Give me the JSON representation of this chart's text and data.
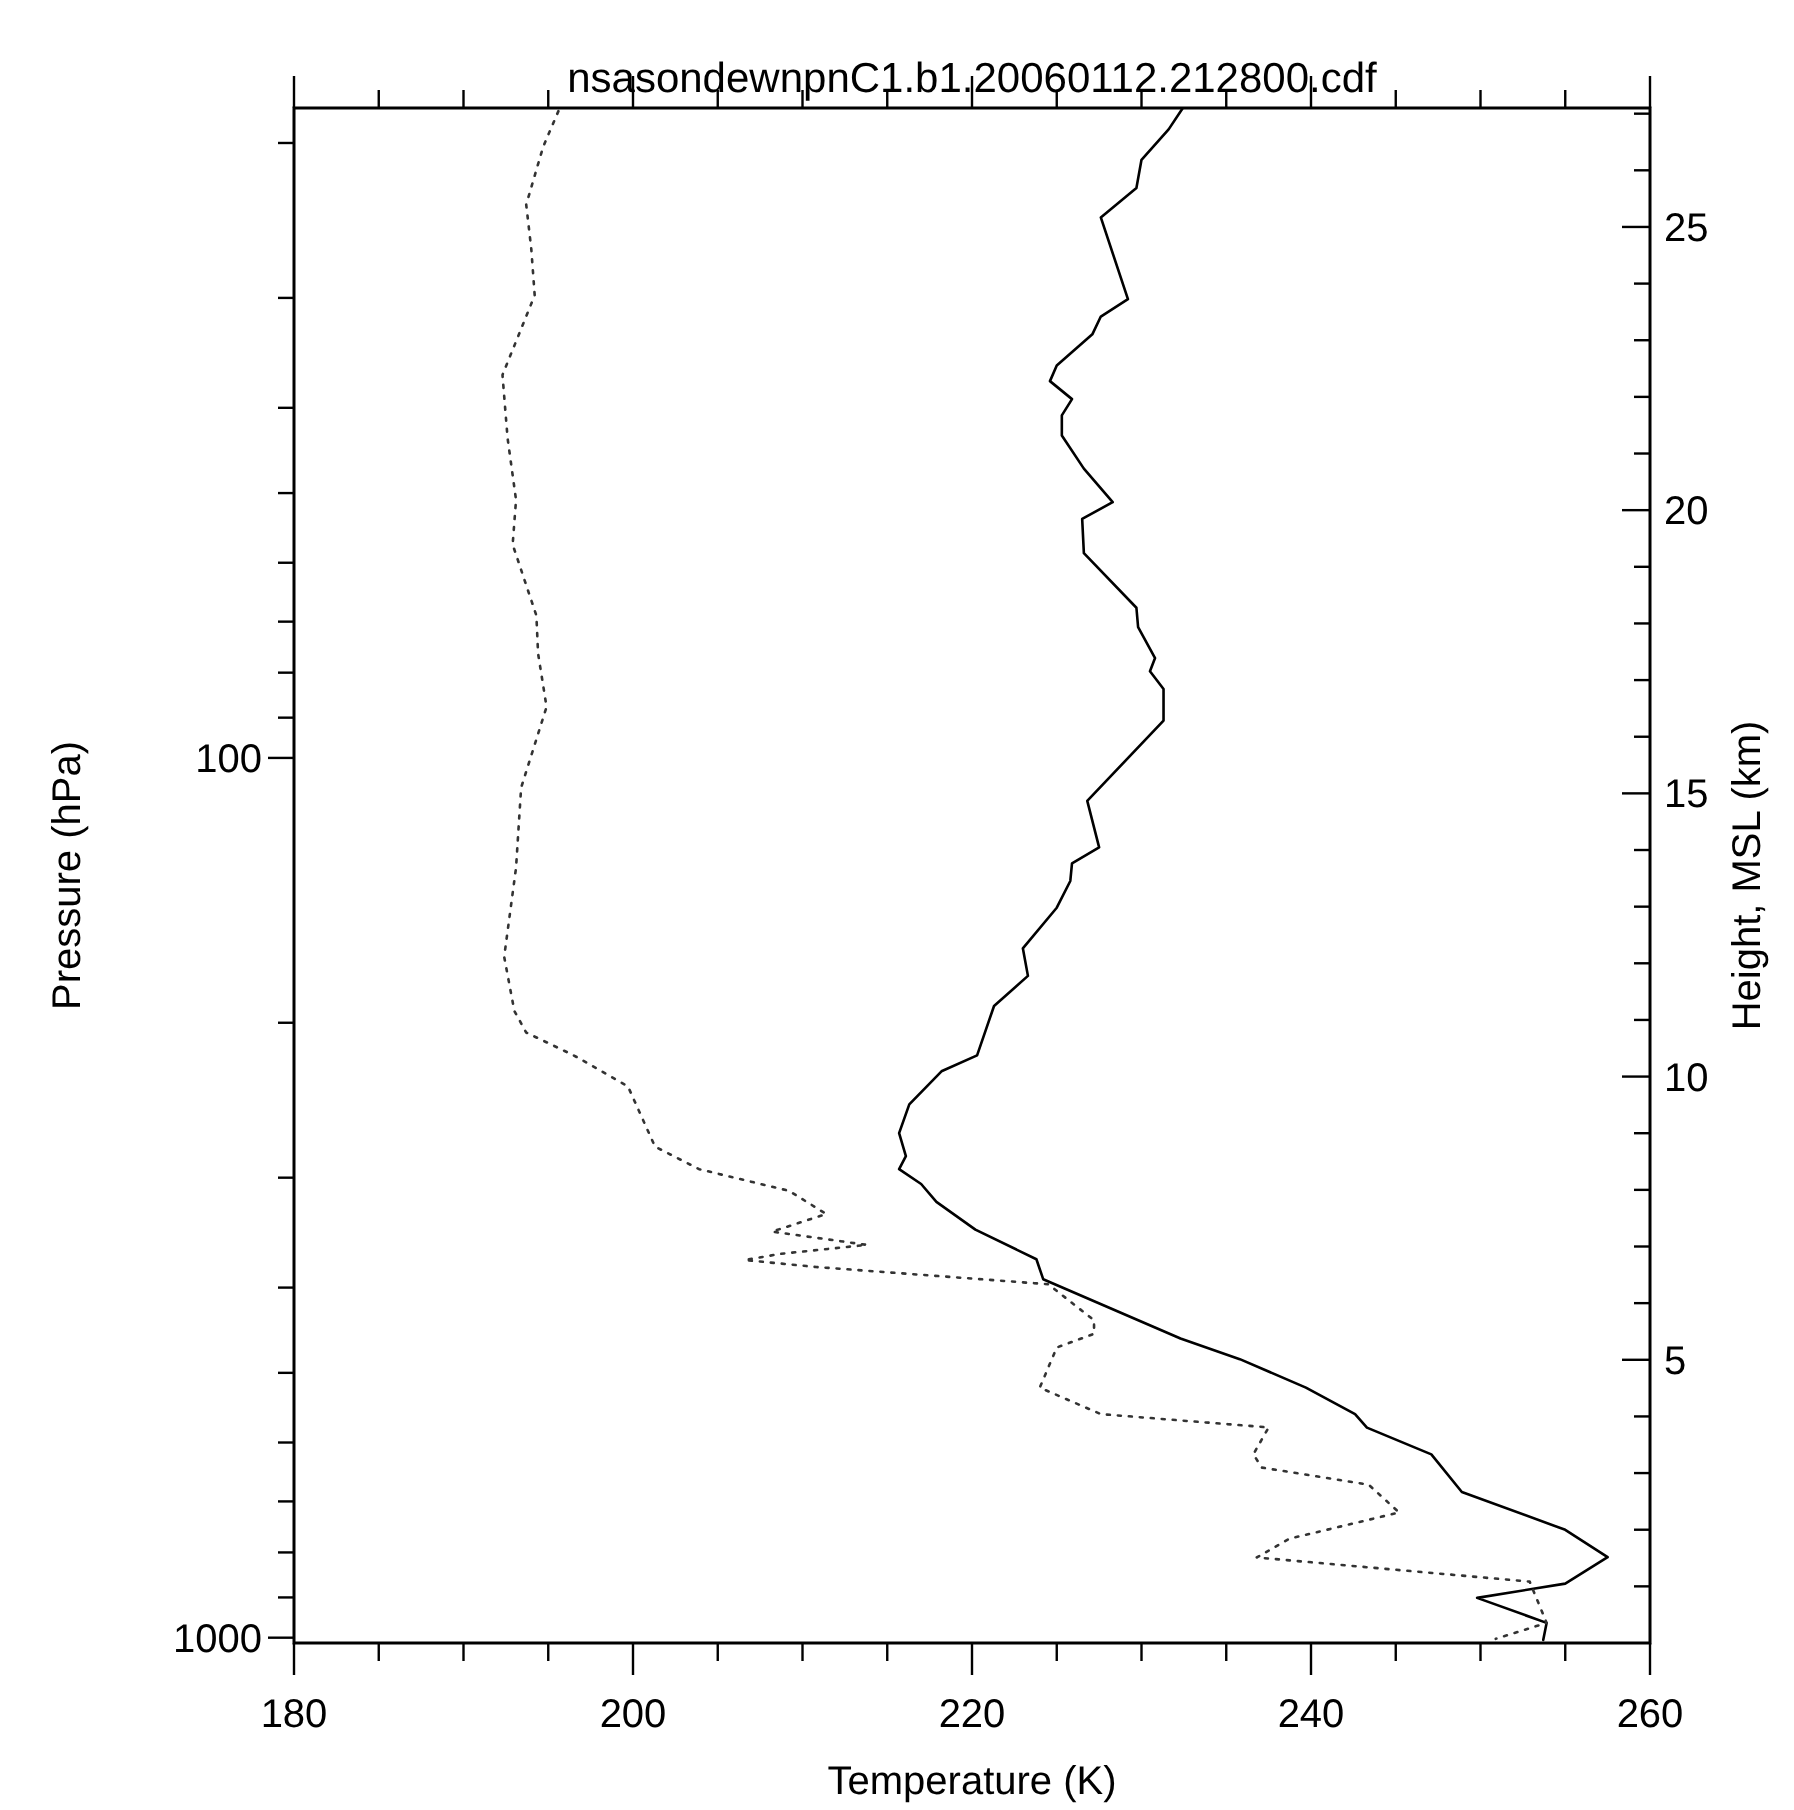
{
  "chart_data": {
    "type": "line",
    "title": "nsasondewnpnC1.b1.20060112.212800.cdf",
    "xlabel": "Temperature (K)",
    "ylabel": "Pressure (hPa)",
    "y2label": "Height, MSL (km)",
    "xlim": [
      180,
      260
    ],
    "xticks": [
      180,
      {
        "value": 185,
        "label": null
      },
      {
        "value": 190,
        "label": null
      },
      {
        "value": 195,
        "label": null
      },
      200,
      {
        "value": 205,
        "label": null
      },
      {
        "value": 210,
        "label": null
      },
      {
        "value": 215,
        "label": null
      },
      220,
      {
        "value": 225,
        "label": null
      },
      {
        "value": 230,
        "label": null
      },
      {
        "value": 235,
        "label": null
      },
      240,
      {
        "value": 245,
        "label": null
      },
      {
        "value": 250,
        "label": null
      },
      {
        "value": 255,
        "label": null
      },
      260
    ],
    "ylim": [
      1014,
      18.25
    ],
    "log": "y",
    "yticks": [
      {
        "value": 20,
        "label": null
      },
      {
        "value": 30,
        "label": null
      },
      {
        "value": 40,
        "label": null
      },
      {
        "value": 50,
        "label": null
      },
      {
        "value": 60,
        "label": null
      },
      {
        "value": 70,
        "label": null
      },
      {
        "value": 80,
        "label": null
      },
      {
        "value": 90,
        "label": null
      },
      100,
      {
        "value": 200,
        "label": null
      },
      {
        "value": 300,
        "label": null
      },
      {
        "value": 400,
        "label": null
      },
      {
        "value": 500,
        "label": null
      },
      {
        "value": 600,
        "label": null
      },
      {
        "value": 700,
        "label": null
      },
      {
        "value": 800,
        "label": null
      },
      {
        "value": 900,
        "label": null
      },
      1000
    ],
    "y2lim": [
      0,
      27.1
    ],
    "y2ticks": [
      {
        "value": 1,
        "label": null
      },
      {
        "value": 2,
        "label": null
      },
      {
        "value": 3,
        "label": null
      },
      {
        "value": 4,
        "label": null
      },
      5,
      {
        "value": 6,
        "label": null
      },
      {
        "value": 7,
        "label": null
      },
      {
        "value": 8,
        "label": null
      },
      {
        "value": 9,
        "label": null
      },
      10,
      {
        "value": 11,
        "label": null
      },
      {
        "value": 12,
        "label": null
      },
      {
        "value": 13,
        "label": null
      },
      {
        "value": 14,
        "label": null
      },
      15,
      {
        "value": 16,
        "label": null
      },
      {
        "value": 17,
        "label": null
      },
      {
        "value": 18,
        "label": null
      },
      {
        "value": 19,
        "label": null
      },
      20,
      {
        "value": 21,
        "label": null
      },
      {
        "value": 22,
        "label": null
      },
      {
        "value": 23,
        "label": null
      },
      {
        "value": 24,
        "label": null
      },
      25,
      {
        "value": 26,
        "label": null
      },
      {
        "value": 27,
        "label": null
      }
    ],
    "series": [
      {
        "color": "#000000",
        "line_style": "solid",
        "x": [
          232.4,
          231.6,
          230.0,
          229.7,
          227.6,
          229.2,
          227.6,
          227.1,
          225.0,
          224.6,
          225.9,
          225.3,
          225.3,
          226.6,
          228.3,
          226.5,
          226.6,
          229.7,
          229.8,
          230.8,
          230.5,
          231.3,
          231.3,
          226.8,
          227.5,
          225.9,
          225.8,
          225.0,
          223.0,
          223.3,
          221.3,
          220.3,
          218.2,
          216.3,
          215.7,
          216.1,
          215.7,
          217.0,
          217.9,
          220.2,
          223.8,
          224.2,
          232.3,
          235.8,
          239.7,
          242.6,
          243.3,
          247.1,
          248.9,
          255.0,
          257.5,
          255.0,
          249.8,
          253.9,
          253.7
        ],
        "values": [
          18.3,
          19.3,
          20.9,
          22.5,
          24.3,
          30.1,
          31.5,
          33.0,
          35.8,
          37.3,
          39.1,
          40.8,
          43.0,
          46.9,
          51.2,
          53.5,
          58.5,
          67.5,
          71.0,
          77.0,
          79.7,
          83.5,
          90.7,
          111.9,
          126.4,
          131.8,
          138.0,
          148.0,
          164.6,
          176.9,
          191.4,
          217.8,
          227.1,
          247.6,
          267,
          283.5,
          293.4,
          305,
          319.6,
          343.7,
          371.4,
          391.3,
          457,
          482.4,
          519.7,
          557,
          577,
          619,
          683,
          754,
          810,
          868,
          901,
          962,
          1006
        ]
      },
      {
        "color": "#333333",
        "line_style": "dotted",
        "x": [
          195.6,
          194.7,
          193.7,
          194.0,
          194.2,
          192.3,
          192.6,
          193.1,
          192.9,
          194.3,
          194.4,
          194.9,
          193.4,
          193.1,
          192.4,
          193.0,
          193.7,
          196.5,
          199.7,
          201.3,
          203.9,
          209.2,
          211.4,
          208.2,
          213.8,
          208.7,
          206.6,
          210.8,
          224.5,
          227.2,
          227.2,
          225.0,
          224.0,
          227.6,
          237.5,
          236.6,
          237.1,
          243.4,
          245.2,
          238.7,
          236.8,
          252.9,
          253.9,
          250.9
        ],
        "values": [
          18.4,
          20.2,
          23.5,
          26.4,
          29.8,
          36.7,
          43.3,
          50.9,
          57.2,
          68.9,
          76.1,
          87.5,
          108.1,
          133.3,
          168.3,
          193.9,
          205.2,
          217.8,
          236.2,
          276.6,
          293.4,
          310.5,
          329.9,
          345.5,
          357.7,
          366.2,
          372.2,
          379,
          396.5,
          435.7,
          451.4,
          467.9,
          519.7,
          557,
          576.8,
          618.8,
          640.7,
          670,
          720.6,
          772,
          810.6,
          863.5,
          962,
          1003
        ]
      }
    ]
  }
}
